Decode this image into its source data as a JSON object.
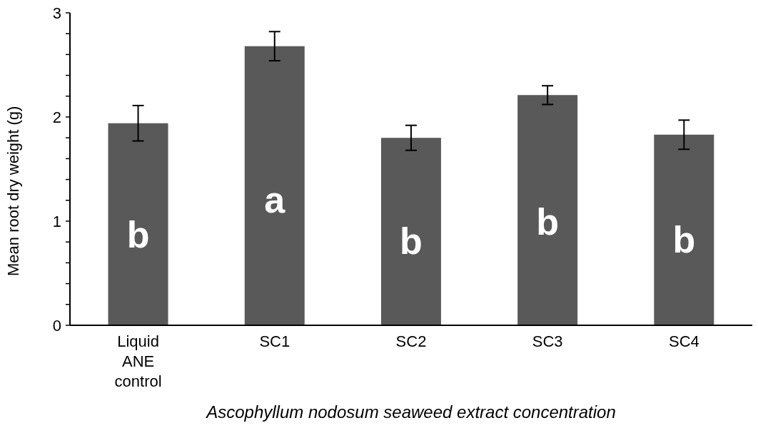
{
  "chart_data": {
    "type": "bar",
    "xlabel": "Ascophyllum nodosum seaweed extract concentration",
    "ylabel": "Mean root dry weight (g)",
    "categories": [
      "Liquid ANE control",
      "SC1",
      "SC2",
      "SC3",
      "SC4"
    ],
    "values": [
      1.94,
      2.68,
      1.8,
      2.21,
      1.83
    ],
    "errors": [
      0.17,
      0.14,
      0.12,
      0.09,
      0.14
    ],
    "color": "#595959",
    "ylim": [
      0,
      3
    ],
    "yticks": [
      0,
      {
        "value": 0.2,
        "label": null
      },
      {
        "value": 0.4,
        "label": null
      },
      {
        "value": 0.6,
        "label": null
      },
      {
        "value": 0.8,
        "label": null
      },
      1,
      {
        "value": 1.2,
        "label": null
      },
      {
        "value": 1.4,
        "label": null
      },
      {
        "value": 1.6,
        "label": null
      },
      {
        "value": 1.8,
        "label": null
      },
      2,
      {
        "value": 2.2,
        "label": null
      },
      {
        "value": 2.4,
        "label": null
      },
      {
        "value": 2.6,
        "label": null
      },
      {
        "value": 2.8,
        "label": null
      },
      3
    ],
    "annotations": [
      "b",
      "a",
      "b",
      "b",
      "b"
    ],
    "grid": false,
    "legend": false
  }
}
